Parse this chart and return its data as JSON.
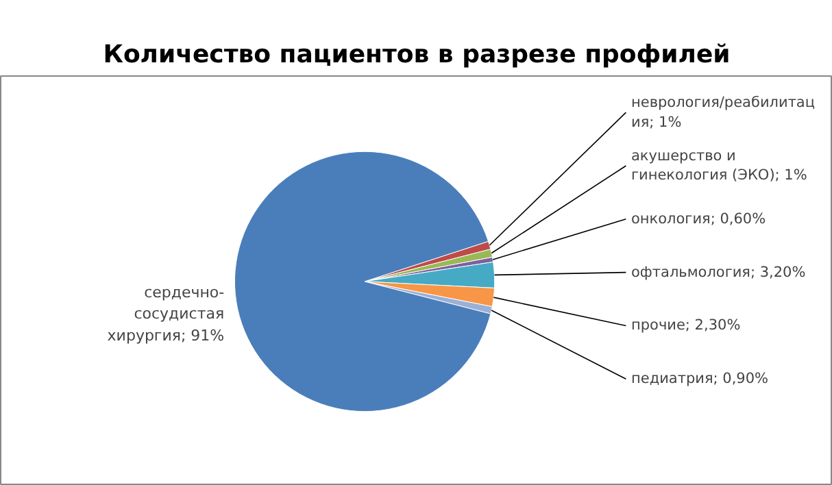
{
  "chart_data": {
    "type": "pie",
    "title": "Количество пациентов в разрезе профилей",
    "categories": [
      "неврология/реабилитация",
      "акушерство и гинекология (ЭКО)",
      "онкология",
      "офтальмология",
      "прочие",
      "педиатрия",
      "сердечно-сосудистая хирургия"
    ],
    "values": [
      1,
      1,
      0.6,
      3.2,
      2.3,
      0.9,
      91
    ],
    "value_labels": [
      "1%",
      "1%",
      "0,60%",
      "3,20%",
      "2,30%",
      "0,90%",
      "91%"
    ],
    "colors": [
      "#be4b48",
      "#98b954",
      "#7d60a0",
      "#46aac5",
      "#f79646",
      "#9bb0d7",
      "#4a7ebb"
    ]
  }
}
